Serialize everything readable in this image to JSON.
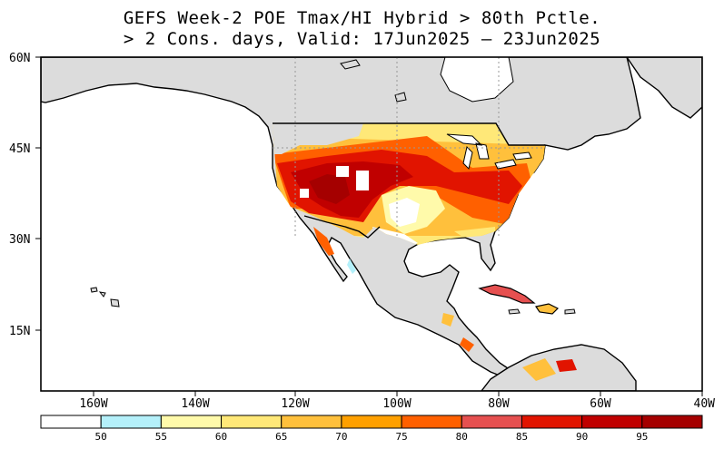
{
  "title": {
    "line1": "GEFS Week-2 POE Tmax/HI Hybrid > 80th Pctle.",
    "line2": "> 2 Cons. days, Valid: 17Jun2025 – 23Jun2025"
  },
  "map": {
    "lat_labels": [
      "60N",
      "45N",
      "30N",
      "15N"
    ],
    "lon_labels": [
      "160W",
      "140W",
      "120W",
      "100W",
      "80W",
      "60W",
      "40W"
    ],
    "colors": {
      "land_no_data": "#dcdcdc",
      "ocean": "#ffffff",
      "coast": "#000000"
    }
  },
  "colorbar": {
    "labels": [
      "50",
      "55",
      "60",
      "65",
      "70",
      "75",
      "80",
      "85",
      "90",
      "95"
    ],
    "colors": [
      "#ffffff",
      "#b4f0fa",
      "#fffaaa",
      "#ffe878",
      "#ffc03c",
      "#ffa000",
      "#ff6000",
      "#e65050",
      "#e11400",
      "#c00000",
      "#a50000"
    ]
  }
}
